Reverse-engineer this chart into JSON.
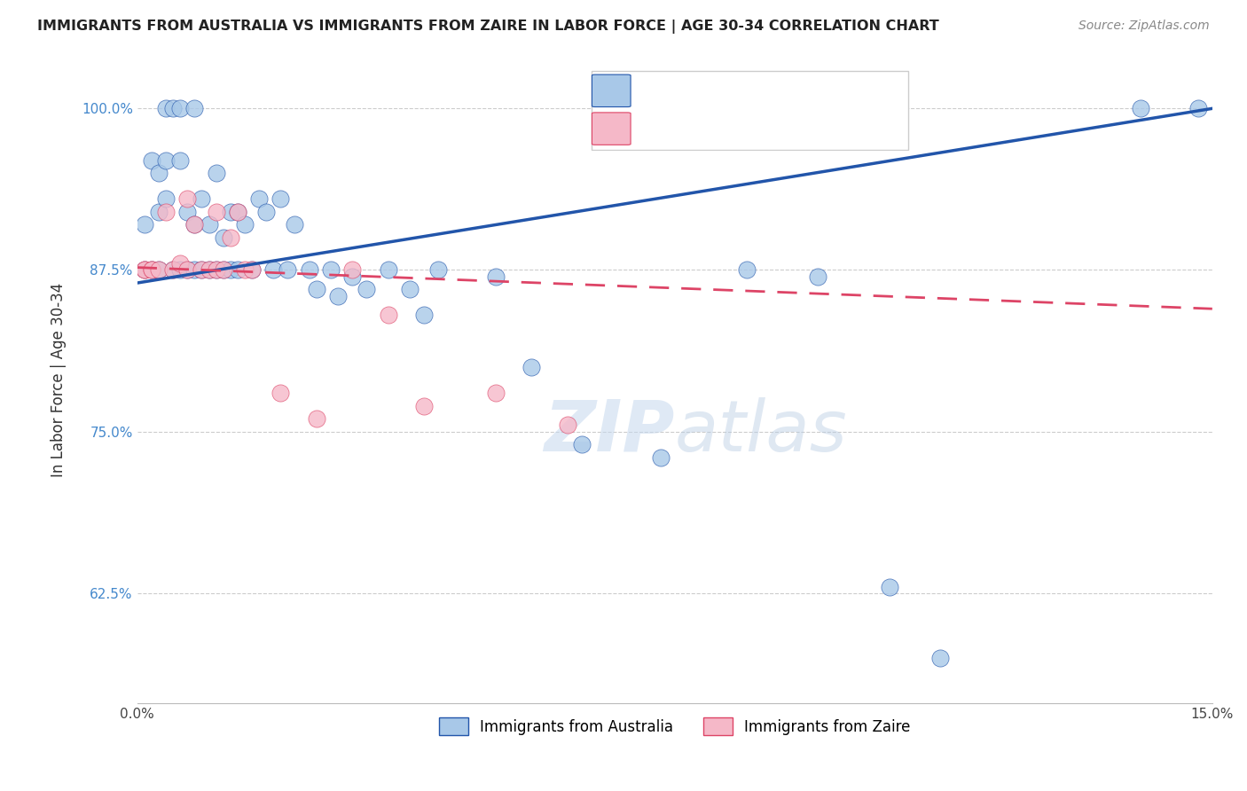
{
  "title": "IMMIGRANTS FROM AUSTRALIA VS IMMIGRANTS FROM ZAIRE IN LABOR FORCE | AGE 30-34 CORRELATION CHART",
  "source": "Source: ZipAtlas.com",
  "ylabel": "In Labor Force | Age 30-34",
  "xlim": [
    0.0,
    0.15
  ],
  "ylim": [
    0.54,
    1.04
  ],
  "yticks": [
    0.625,
    0.75,
    0.875,
    1.0
  ],
  "ytick_labels": [
    "62.5%",
    "75.0%",
    "87.5%",
    "100.0%"
  ],
  "xticks": [
    0.0,
    0.03,
    0.06,
    0.09,
    0.12,
    0.15
  ],
  "xtick_labels": [
    "0.0%",
    "",
    "",
    "",
    "",
    "15.0%"
  ],
  "australia_color": "#a8c8e8",
  "zaire_color": "#f5b8c8",
  "australia_line_color": "#2255aa",
  "zaire_line_color": "#dd4466",
  "aus_x": [
    0.001,
    0.001,
    0.002,
    0.002,
    0.003,
    0.003,
    0.003,
    0.004,
    0.004,
    0.004,
    0.005,
    0.005,
    0.006,
    0.006,
    0.006,
    0.007,
    0.007,
    0.008,
    0.008,
    0.008,
    0.009,
    0.009,
    0.01,
    0.01,
    0.011,
    0.011,
    0.012,
    0.012,
    0.013,
    0.013,
    0.014,
    0.014,
    0.015,
    0.016,
    0.017,
    0.018,
    0.019,
    0.02,
    0.021,
    0.022,
    0.024,
    0.025,
    0.027,
    0.028,
    0.03,
    0.032,
    0.035,
    0.038,
    0.04,
    0.042,
    0.05,
    0.055,
    0.062,
    0.073,
    0.085,
    0.095,
    0.105,
    0.112,
    0.14,
    0.148
  ],
  "aus_y": [
    0.875,
    0.91,
    0.875,
    0.96,
    0.92,
    0.875,
    0.95,
    0.93,
    0.96,
    1.0,
    0.875,
    1.0,
    0.875,
    0.96,
    1.0,
    0.875,
    0.92,
    0.875,
    0.91,
    1.0,
    0.875,
    0.93,
    0.875,
    0.91,
    0.875,
    0.95,
    0.875,
    0.9,
    0.875,
    0.92,
    0.875,
    0.92,
    0.91,
    0.875,
    0.93,
    0.92,
    0.875,
    0.93,
    0.875,
    0.91,
    0.875,
    0.86,
    0.875,
    0.855,
    0.87,
    0.86,
    0.875,
    0.86,
    0.84,
    0.875,
    0.87,
    0.8,
    0.74,
    0.73,
    0.875,
    0.87,
    0.63,
    0.575,
    1.0,
    1.0
  ],
  "zaire_x": [
    0.001,
    0.001,
    0.002,
    0.002,
    0.003,
    0.004,
    0.005,
    0.006,
    0.007,
    0.007,
    0.008,
    0.009,
    0.01,
    0.011,
    0.011,
    0.012,
    0.013,
    0.014,
    0.015,
    0.016,
    0.02,
    0.025,
    0.03,
    0.035,
    0.04,
    0.05,
    0.06
  ],
  "zaire_y": [
    0.875,
    0.875,
    0.875,
    0.875,
    0.875,
    0.92,
    0.875,
    0.88,
    0.93,
    0.875,
    0.91,
    0.875,
    0.875,
    0.875,
    0.92,
    0.875,
    0.9,
    0.92,
    0.875,
    0.875,
    0.78,
    0.76,
    0.875,
    0.84,
    0.77,
    0.78,
    0.755
  ]
}
